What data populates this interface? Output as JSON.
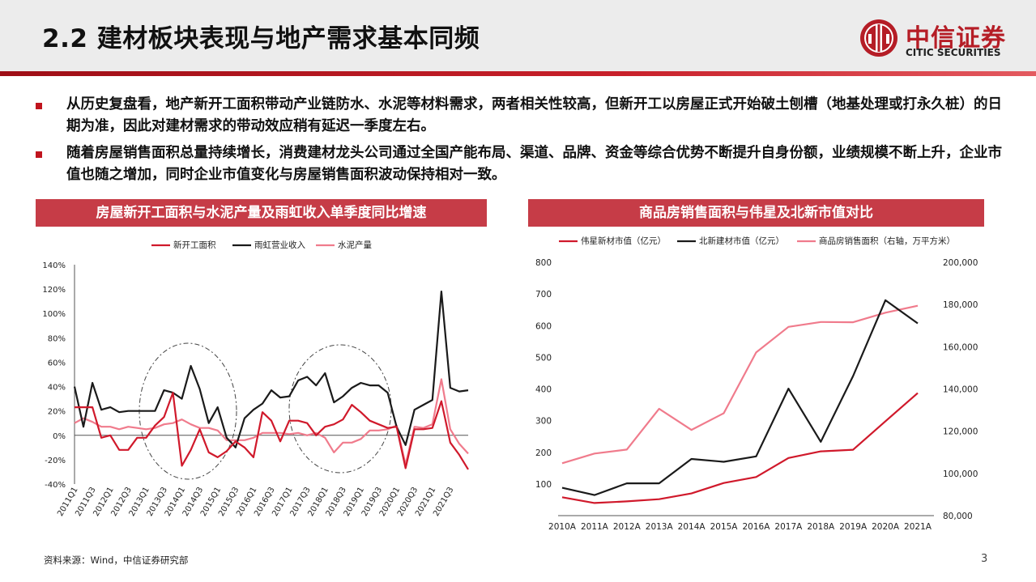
{
  "slide": {
    "title": "2.2 建材板块表现与地产需求基本同频",
    "brand_cn": "中信证券",
    "brand_en": "CITIC SECURITIES",
    "bullets": [
      "从历史复盘看，地产新开工面积带动产业链防水、水泥等材料需求，两者相关性较高，但新开工以房屋正式开始破土刨槽（地基处理或打永久桩）的日期为准，因此对建材需求的带动效应稍有延迟一季度左右。",
      "随着房屋销售面积总量持续增长，消费建材龙头公司通过全国产能布局、渠道、品牌、资金等综合优势不断提升自身份额，业绩规模不断上升，企业市值也随之增加，同时企业市值变化与房屋销售面积波动保持相对一致。"
    ],
    "source": "资料来源：Wind，中信证券研究部",
    "page": "3",
    "accent": "#c63c47",
    "brand_red": "#b51d26"
  },
  "chart_data": [
    {
      "type": "line",
      "title": "房屋新开工面积与水泥产量及雨虹收入单季度同比增速",
      "ylim": [
        -40,
        140
      ],
      "yticks": [
        "140%",
        "120%",
        "100%",
        "80%",
        "60%",
        "40%",
        "20%",
        "0%",
        "-20%",
        "-40%"
      ],
      "xticks": [
        "2011Q1",
        "2011Q3",
        "2012Q1",
        "2012Q3",
        "2013Q1",
        "2013Q3",
        "2014Q1",
        "2014Q3",
        "2015Q1",
        "2015Q3",
        "2016Q1",
        "2016Q3",
        "2017Q1",
        "2017Q3",
        "2018Q1",
        "2018Q3",
        "2019Q1",
        "2019Q3",
        "2020Q1",
        "2020Q3",
        "2021Q1",
        "2021Q3"
      ],
      "series": [
        {
          "name": "新开工面积",
          "color": "#d0192b",
          "values": [
            23,
            23,
            23,
            -2,
            0,
            -12,
            -12,
            -2,
            -2,
            8,
            15,
            35,
            -25,
            -12,
            5,
            -14,
            -18,
            -13,
            -5,
            -10,
            -18,
            19,
            12,
            -5,
            12,
            12,
            10,
            0,
            7,
            9,
            13,
            25,
            19,
            12,
            9,
            6,
            7,
            -27,
            5,
            5,
            6,
            28,
            -6,
            -16,
            -28
          ]
        },
        {
          "name": "雨虹营业收入",
          "color": "#1a1a1a",
          "values": [
            40,
            7,
            43,
            21,
            23,
            19,
            20,
            20,
            20,
            20,
            37,
            35,
            30,
            57,
            38,
            10,
            23,
            -2,
            -10,
            14,
            21,
            26,
            37,
            31,
            32,
            45,
            48,
            41,
            51,
            27,
            32,
            39,
            43,
            41,
            41,
            35,
            7,
            -8,
            21,
            25,
            29,
            118,
            39,
            36,
            37
          ]
        },
        {
          "name": "水泥产量",
          "color": "#f07b8c",
          "values": [
            10,
            14,
            11,
            7,
            7,
            5,
            7,
            6,
            5,
            6,
            9,
            10,
            13,
            9,
            6,
            6,
            4,
            -4,
            -4,
            -4,
            -2,
            2,
            2,
            2,
            1,
            2,
            0,
            2,
            -2,
            -14,
            -6,
            -6,
            -3,
            4,
            4,
            5,
            8,
            -24,
            7,
            6,
            9,
            46,
            5,
            -7,
            -15
          ]
        }
      ]
    },
    {
      "type": "line",
      "title": "商品房销售面积与伟星及北新市值对比",
      "x": [
        "2010A",
        "2011A",
        "2012A",
        "2013A",
        "2014A",
        "2015A",
        "2016A",
        "2017A",
        "2018A",
        "2019A",
        "2020A",
        "2021A"
      ],
      "ylim_left": [
        0,
        800
      ],
      "ylim_right": [
        80000,
        200000
      ],
      "yticks_left": [
        "800",
        "700",
        "600",
        "500",
        "400",
        "300",
        "200",
        "100",
        ""
      ],
      "yticks_right": [
        "200,000",
        "180,000",
        "160,000",
        "140,000",
        "120,000",
        "100,000",
        "80,000"
      ],
      "series": [
        {
          "name": "伟星新材市值（亿元）",
          "color": "#d0192b",
          "axis": "left",
          "values": [
            58,
            40,
            45,
            52,
            70,
            103,
            122,
            182,
            203,
            208,
            298,
            387
          ]
        },
        {
          "name": "北新建材市值（亿元）",
          "color": "#1a1a1a",
          "axis": "left",
          "values": [
            88,
            65,
            102,
            102,
            179,
            170,
            187,
            401,
            233,
            441,
            680,
            607
          ]
        },
        {
          "name": "商品房销售面积（右轴，万平方米）",
          "color": "#f07b8c",
          "axis": "right",
          "values": [
            104800,
            109400,
            111300,
            130600,
            120600,
            128500,
            157300,
            169400,
            171700,
            171600,
            176100,
            179400
          ]
        }
      ]
    }
  ]
}
